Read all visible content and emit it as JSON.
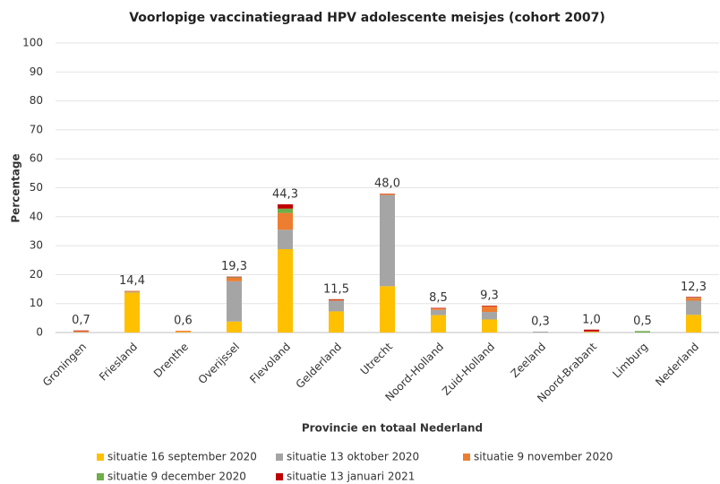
{
  "chart_data": {
    "type": "stacked_bar",
    "title": "Voorlopige vaccinatiegraad HPV adolescente meisjes (cohort 2007)",
    "ylabel": "Percentage",
    "xlabel": "Provincie en totaal Nederland",
    "categories": [
      "Groningen",
      "Friesland",
      "Drenthe",
      "Overijssel",
      "Flevoland",
      "Gelderland",
      "Utrecht",
      "Noord-Holland",
      "Zuid-Holland",
      "Zeeland",
      "Noord-Brabant",
      "Limburg",
      "Nederland"
    ],
    "series": [
      {
        "name": "situatie 16 september 2020",
        "color": "#ffc000",
        "values": [
          0.1,
          13.8,
          0.2,
          3.8,
          28.8,
          7.3,
          16.0,
          6.0,
          4.5,
          0,
          0.2,
          0,
          6.1
        ]
      },
      {
        "name": "situatie 13 oktober 2020",
        "color": "#a5a5a5",
        "values": [
          0.1,
          0.3,
          0,
          13.9,
          6.7,
          3.7,
          31.5,
          1.8,
          2.6,
          0.3,
          0.1,
          0,
          4.9
        ]
      },
      {
        "name": "situatie 9 november 2020",
        "color": "#ed7d31",
        "values": [
          0.3,
          0.3,
          0.4,
          1.2,
          5.8,
          0.3,
          0.4,
          0.5,
          2.0,
          0,
          0.1,
          0,
          1.0
        ]
      },
      {
        "name": "situatie 9 december 2020",
        "color": "#70ad47",
        "values": [
          0,
          0,
          0,
          0.2,
          1.5,
          0,
          0,
          0,
          0,
          0,
          0,
          0.5,
          0.1
        ]
      },
      {
        "name": "situatie 13 januari 2021",
        "color": "#c00000",
        "values": [
          0.2,
          0,
          0,
          0.2,
          1.5,
          0.2,
          0.1,
          0.2,
          0.2,
          0,
          0.6,
          0,
          0.2
        ]
      }
    ],
    "totals": [
      0.7,
      14.4,
      0.6,
      19.3,
      44.3,
      11.5,
      48.0,
      8.5,
      9.3,
      0.3,
      1.0,
      0.5,
      12.3
    ],
    "total_labels": [
      "0,7",
      "14,4",
      "0,6",
      "19,3",
      "44,3",
      "11,5",
      "48,0",
      "8,5",
      "9,3",
      "0,3",
      "1,0",
      "0,5",
      "12,3"
    ],
    "ylim": [
      0,
      100
    ],
    "yticks": [
      0,
      10,
      20,
      30,
      40,
      50,
      60,
      70,
      80,
      90,
      100
    ],
    "grid": true
  }
}
